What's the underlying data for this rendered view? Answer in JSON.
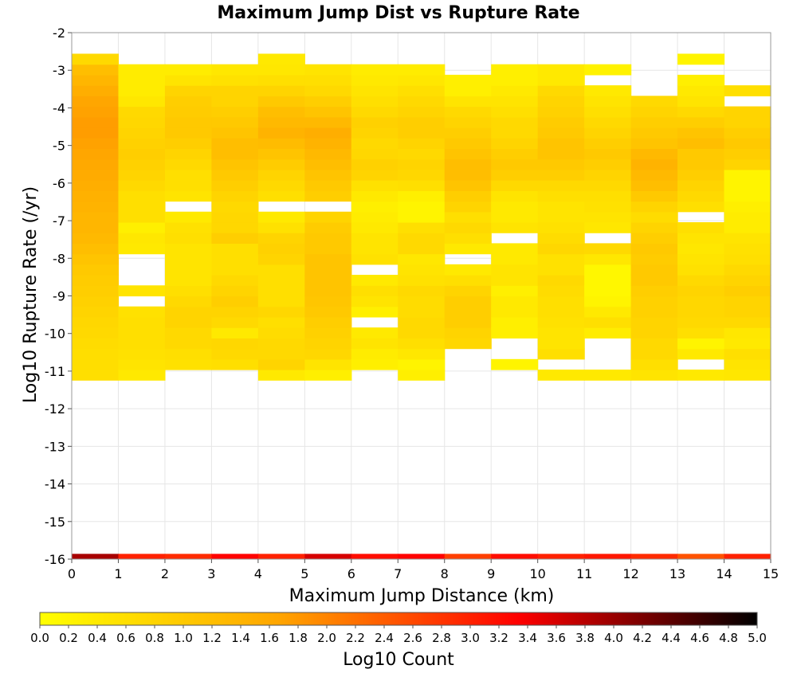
{
  "chart_data": {
    "type": "heatmap",
    "title": "Maximum Jump Dist vs Rupture Rate",
    "xlabel": "Maximum Jump Distance (km)",
    "ylabel": "Log10 Rupture Rate (/yr)",
    "colorbar_label": "Log10 Count",
    "xlim": [
      0,
      15
    ],
    "ylim": [
      -16,
      -2
    ],
    "x_ticks": [
      "0",
      "1",
      "2",
      "3",
      "4",
      "5",
      "6",
      "7",
      "8",
      "9",
      "10",
      "11",
      "12",
      "13",
      "14",
      "15"
    ],
    "y_ticks": [
      "-2",
      "-3",
      "-4",
      "-5",
      "-6",
      "-7",
      "-8",
      "-9",
      "-10",
      "-11",
      "-12",
      "-13",
      "-14",
      "-15",
      "-16"
    ],
    "colorbar_ticks": [
      "0.0",
      "0.2",
      "0.4",
      "0.6",
      "0.8",
      "1.0",
      "1.2",
      "1.4",
      "1.6",
      "1.8",
      "2.0",
      "2.2",
      "2.4",
      "2.6",
      "2.8",
      "3.0",
      "3.2",
      "3.4",
      "3.6",
      "3.8",
      "4.0",
      "4.2",
      "4.4",
      "4.6",
      "4.8",
      "5.0"
    ],
    "colorbar_range": [
      0,
      5
    ],
    "colormap": [
      "#ffff00",
      "#ffa500",
      "#ff0000",
      "#000000"
    ],
    "grid": true,
    "x_bin_width": 1,
    "y_bin_height": 0.28,
    "y_bin_start": -11.24,
    "y_bin_count": 31,
    "columns": [
      {
        "x0": 0,
        "values": [
          0.6,
          0.62,
          0.62,
          0.65,
          0.7,
          0.75,
          0.8,
          0.85,
          0.9,
          0.95,
          1.0,
          1.1,
          1.2,
          1.3,
          1.35,
          1.35,
          1.4,
          1.45,
          1.5,
          1.55,
          1.6,
          1.65,
          1.7,
          1.75,
          1.75,
          1.7,
          1.65,
          1.5,
          1.35,
          1.2,
          0.7
        ]
      },
      {
        "x0": 1,
        "values": [
          0.4,
          0.5,
          0.55,
          0.6,
          0.6,
          0.6,
          0.55,
          null,
          0.5,
          null,
          null,
          null,
          0.4,
          0.45,
          0.3,
          0.6,
          0.6,
          0.6,
          0.7,
          0.8,
          0.85,
          0.9,
          0.85,
          0.8,
          0.75,
          0.7,
          0.45,
          0.35,
          0.35,
          0.35,
          null
        ]
      },
      {
        "x0": 2,
        "values": [
          null,
          0.55,
          0.6,
          0.7,
          0.7,
          0.8,
          0.8,
          0.7,
          0.6,
          0.5,
          0.5,
          0.5,
          0.5,
          0.6,
          0.55,
          0.4,
          null,
          0.5,
          0.6,
          0.6,
          0.7,
          0.8,
          0.9,
          1.0,
          1.0,
          0.95,
          0.9,
          0.8,
          0.5,
          0.35,
          null
        ]
      },
      {
        "x0": 3,
        "values": [
          null,
          0.6,
          0.7,
          0.75,
          0.4,
          0.7,
          0.8,
          0.9,
          0.8,
          0.7,
          0.6,
          0.6,
          0.6,
          0.9,
          0.75,
          0.75,
          0.7,
          0.8,
          0.9,
          1.0,
          1.1,
          1.2,
          1.2,
          1.1,
          1.0,
          0.9,
          0.8,
          0.8,
          0.55,
          0.45,
          null
        ]
      },
      {
        "x0": 4,
        "values": [
          0.4,
          0.8,
          0.7,
          0.7,
          0.65,
          0.6,
          0.75,
          0.6,
          0.6,
          0.6,
          0.6,
          0.8,
          0.85,
          0.8,
          0.55,
          0.4,
          null,
          0.6,
          0.7,
          0.8,
          0.95,
          1.1,
          1.25,
          1.4,
          1.3,
          1.2,
          1.0,
          0.8,
          0.6,
          0.45,
          0.4
        ]
      },
      {
        "x0": 5,
        "values": [
          0.3,
          0.5,
          0.75,
          0.8,
          0.85,
          0.9,
          1.0,
          1.05,
          1.1,
          1.1,
          1.1,
          1.1,
          1.0,
          1.0,
          0.95,
          0.8,
          null,
          0.9,
          1.0,
          1.1,
          1.2,
          1.3,
          1.4,
          1.5,
          1.3,
          1.1,
          0.9,
          0.7,
          0.6,
          0.5,
          null
        ]
      },
      {
        "x0": 6,
        "values": [
          null,
          0.3,
          0.35,
          0.5,
          0.4,
          null,
          0.3,
          0.5,
          0.6,
          0.4,
          null,
          0.55,
          0.5,
          0.5,
          0.4,
          0.35,
          0.3,
          0.4,
          0.55,
          0.8,
          0.85,
          0.75,
          0.7,
          0.8,
          0.85,
          0.7,
          0.6,
          0.5,
          0.4,
          0.35,
          null
        ]
      },
      {
        "x0": 7,
        "values": [
          0.3,
          0.2,
          0.45,
          0.6,
          0.7,
          0.7,
          0.65,
          0.65,
          0.7,
          0.55,
          0.5,
          0.45,
          0.7,
          0.7,
          0.6,
          0.2,
          0.2,
          0.3,
          0.6,
          0.75,
          0.8,
          0.7,
          0.8,
          0.9,
          0.9,
          0.8,
          0.7,
          0.6,
          0.45,
          0.35,
          null
        ]
      },
      {
        "x0": 8,
        "values": [
          null,
          null,
          null,
          0.75,
          0.8,
          0.9,
          0.9,
          0.9,
          0.8,
          0.6,
          0.4,
          null,
          0.4,
          0.6,
          0.7,
          0.6,
          0.8,
          0.9,
          1.1,
          1.2,
          1.2,
          1.1,
          1.0,
          0.9,
          0.8,
          0.7,
          0.5,
          0.3,
          0.3,
          null,
          null
        ]
      },
      {
        "x0": 9,
        "values": [
          null,
          0.2,
          null,
          null,
          0.3,
          0.3,
          0.4,
          0.4,
          0.3,
          0.5,
          0.5,
          0.4,
          0.4,
          null,
          0.5,
          0.4,
          0.4,
          0.5,
          0.7,
          0.9,
          1.0,
          0.9,
          0.8,
          0.7,
          0.7,
          0.6,
          0.5,
          0.4,
          0.3,
          0.3,
          null
        ]
      },
      {
        "x0": 10,
        "values": [
          0.4,
          null,
          0.6,
          0.5,
          0.5,
          0.55,
          0.6,
          0.6,
          0.65,
          0.7,
          0.55,
          0.55,
          0.75,
          0.65,
          0.55,
          0.5,
          0.5,
          0.6,
          0.7,
          0.9,
          1.0,
          1.1,
          1.1,
          1.0,
          0.95,
          0.85,
          0.8,
          0.7,
          0.4,
          0.4,
          null
        ]
      },
      {
        "x0": 11,
        "values": [
          0.4,
          null,
          null,
          null,
          0.35,
          0.6,
          0.4,
          0.2,
          0.15,
          0.15,
          0.15,
          0.45,
          0.7,
          null,
          0.45,
          0.5,
          0.55,
          0.6,
          0.7,
          0.8,
          0.9,
          1.0,
          0.9,
          0.8,
          0.7,
          0.6,
          0.5,
          0.4,
          null,
          0.25,
          null
        ]
      },
      {
        "x0": 12,
        "values": [
          0.5,
          0.6,
          0.7,
          0.7,
          0.8,
          0.8,
          0.85,
          0.85,
          0.9,
          1.0,
          1.0,
          0.95,
          1.0,
          0.9,
          0.8,
          0.65,
          0.8,
          1.0,
          1.2,
          1.3,
          1.4,
          1.3,
          1.1,
          1.0,
          0.9,
          0.8,
          0.7,
          null,
          null,
          null,
          null
        ]
      },
      {
        "x0": 13,
        "values": [
          0.4,
          null,
          0.4,
          0.2,
          0.6,
          0.7,
          0.75,
          0.75,
          0.8,
          0.7,
          0.55,
          0.5,
          0.45,
          0.5,
          0.6,
          null,
          0.6,
          0.7,
          0.8,
          0.9,
          1.0,
          1.0,
          1.2,
          1.1,
          0.9,
          0.7,
          0.5,
          0.4,
          0.3,
          null,
          0.2
        ]
      },
      {
        "x0": 14,
        "values": [
          0.45,
          0.5,
          0.6,
          0.4,
          0.45,
          0.7,
          0.8,
          0.8,
          0.9,
          0.8,
          0.7,
          0.6,
          0.55,
          0.5,
          0.35,
          0.35,
          0.3,
          0.2,
          0.2,
          0.2,
          0.8,
          0.9,
          1.0,
          0.9,
          0.8,
          0.8,
          null,
          0.6,
          null,
          null,
          null
        ]
      }
    ],
    "bottom_row": {
      "y": -16,
      "values": [
        3.9,
        3.0,
        2.9,
        3.3,
        3.0,
        3.6,
        3.2,
        3.3,
        2.7,
        3.2,
        3.0,
        3.1,
        2.9,
        2.5,
        3.0
      ]
    }
  }
}
